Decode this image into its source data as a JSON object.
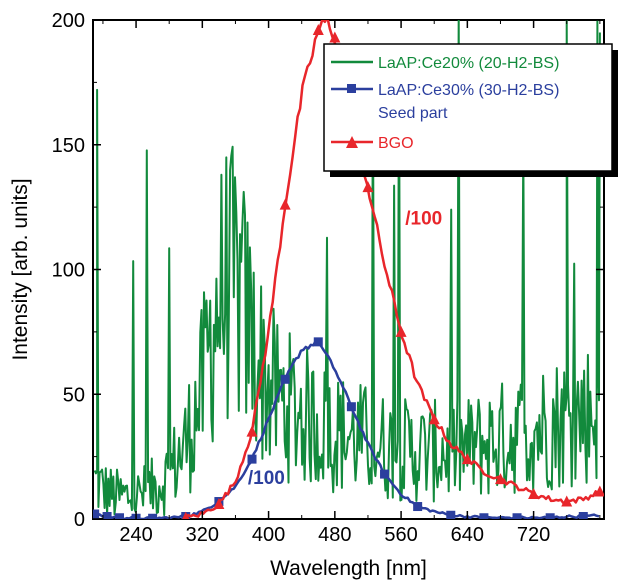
{
  "chart_data": {
    "type": "line",
    "title": "",
    "xlabel": "Wavelength [nm]",
    "ylabel": "Intensity [arb. units]",
    "xlim": [
      188,
      805
    ],
    "ylim": [
      0,
      200
    ],
    "xticks": [
      240,
      320,
      400,
      480,
      560,
      640,
      720
    ],
    "yticks": [
      0,
      50,
      100,
      150,
      200
    ],
    "xtick_labels": [
      "240",
      "320",
      "400",
      "480",
      "560",
      "640",
      "720"
    ],
    "ytick_labels": [
      "0",
      "50",
      "100",
      "150",
      "200"
    ],
    "grid": false,
    "legend_position": "top-right",
    "legend": {
      "entries": [
        "LaAP:Ce20% (20-H2-BS)",
        "LaAP:Ce30% (30-H2-BS)",
        "Seed part",
        "BGO"
      ]
    },
    "series": [
      {
        "name": "LaAP:Ce20% (20-H2-BS)",
        "color": "#128a3c",
        "marker": "none",
        "noisy": true,
        "x": [
          190,
          200,
          210,
          220,
          240,
          260,
          280,
          300,
          320,
          330,
          340,
          350,
          360,
          370,
          380,
          390,
          400,
          420,
          440,
          460,
          480,
          500,
          520,
          540,
          560,
          580,
          600,
          620,
          640,
          660,
          680,
          700,
          720,
          740,
          760,
          780,
          800
        ],
        "y": [
          15,
          12,
          10,
          9,
          9,
          12,
          18,
          30,
          52,
          72,
          88,
          95,
          92,
          84,
          72,
          62,
          53,
          46,
          42,
          38,
          35,
          33,
          31,
          29,
          28,
          27,
          27,
          27,
          28,
          30,
          32,
          34,
          36,
          38,
          40,
          42,
          44
        ]
      },
      {
        "name": "LaAP:Ce30% (30-H2-BS)",
        "color": "#2b3f9e",
        "marker": "square",
        "x": [
          190,
          205,
          220,
          240,
          260,
          280,
          300,
          320,
          340,
          360,
          380,
          400,
          420,
          440,
          460,
          480,
          500,
          520,
          540,
          560,
          580,
          600,
          620,
          640,
          660,
          680,
          700,
          720,
          740,
          760,
          780,
          800
        ],
        "y": [
          2,
          1,
          0.5,
          0.3,
          0.3,
          0.5,
          1,
          3,
          7,
          13,
          24,
          40,
          56,
          68,
          71,
          60,
          45,
          30,
          18,
          10,
          5,
          3,
          1.5,
          1,
          0.5,
          0.5,
          0.5,
          0.5,
          0.5,
          1,
          1,
          1.5
        ]
      },
      {
        "name": "BGO",
        "color": "#e8262b",
        "marker": "triangle",
        "x": [
          300,
          320,
          340,
          360,
          380,
          400,
          420,
          440,
          460,
          470,
          480,
          500,
          520,
          540,
          560,
          580,
          600,
          620,
          640,
          660,
          680,
          700,
          720,
          740,
          760,
          780,
          800
        ],
        "y": [
          0.5,
          2,
          6,
          15,
          35,
          75,
          126,
          170,
          196,
          200,
          193,
          165,
          133,
          102,
          75,
          54,
          40,
          30,
          24,
          19,
          16,
          13,
          10,
          8,
          7,
          8,
          11
        ]
      }
    ],
    "annotations": [
      {
        "text": "/100",
        "x": 565,
        "y": 118,
        "color": "#e8262b"
      },
      {
        "text": "/100",
        "x": 375,
        "y": 14,
        "color": "#2b3f9e"
      }
    ]
  }
}
